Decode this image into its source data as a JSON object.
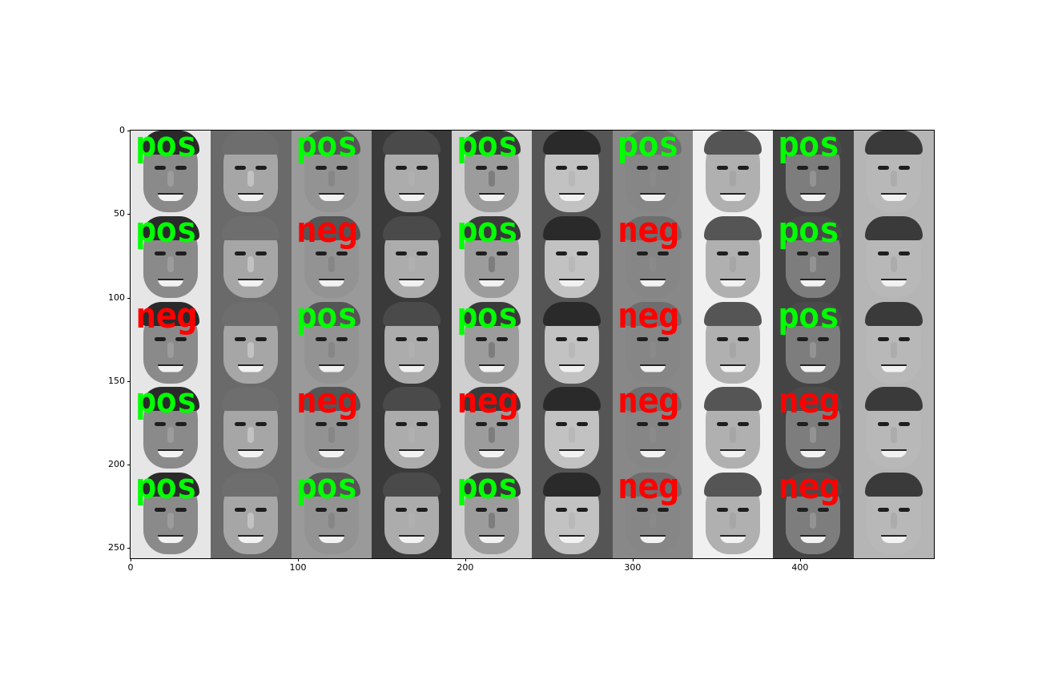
{
  "chart_data": {
    "type": "image",
    "xlim": [
      0,
      480
    ],
    "ylim": [
      256,
      0
    ],
    "x_ticks": [
      0,
      100,
      200,
      300,
      400
    ],
    "y_ticks": [
      0,
      50,
      100,
      150,
      200,
      250
    ],
    "grid": {
      "rows": 5,
      "cols": 5,
      "pair_width": 96,
      "pair_height": 51.2
    },
    "colors": {
      "pos": "#00ff00",
      "neg": "#ff0000"
    },
    "labels": [
      [
        "pos",
        "pos",
        "pos",
        "pos",
        "pos"
      ],
      [
        "pos",
        "neg",
        "pos",
        "neg",
        "pos"
      ],
      [
        "neg",
        "pos",
        "pos",
        "neg",
        "pos"
      ],
      [
        "pos",
        "neg",
        "neg",
        "neg",
        "neg"
      ],
      [
        "pos",
        "pos",
        "pos",
        "neg",
        "neg"
      ]
    ]
  }
}
